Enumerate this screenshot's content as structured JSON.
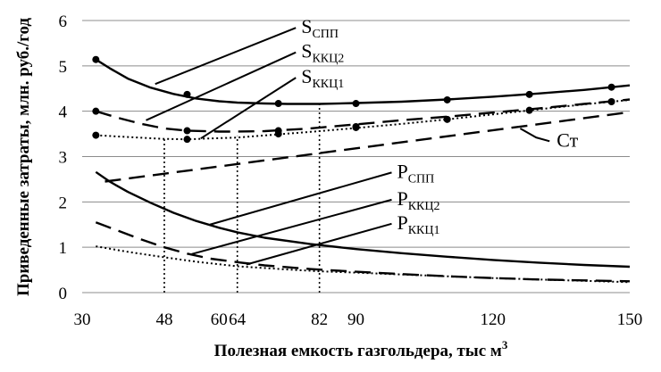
{
  "chart_data": {
    "type": "line",
    "title": "",
    "xlabel_main": "Полезная емкость газгольдера, тыс м",
    "xlabel_sup": "3",
    "ylabel": "Приведенные затраты, млн. руб./год",
    "xlim": [
      30,
      150
    ],
    "ylim": [
      0,
      6
    ],
    "xticks": [
      30,
      48,
      60,
      64,
      82,
      90,
      120,
      150
    ],
    "yticks": [
      0,
      1,
      2,
      3,
      4,
      5,
      6
    ],
    "grid": "horizontal",
    "series": [
      {
        "name": "S_СПП",
        "color": "#000000",
        "dash": "solid",
        "markers": true,
        "points": [
          [
            33,
            5.14
          ],
          [
            36,
            4.95
          ],
          [
            40,
            4.72
          ],
          [
            45,
            4.52
          ],
          [
            50,
            4.38
          ],
          [
            55,
            4.28
          ],
          [
            60,
            4.22
          ],
          [
            64,
            4.19
          ],
          [
            70,
            4.17
          ],
          [
            75,
            4.16
          ],
          [
            82,
            4.16
          ],
          [
            90,
            4.18
          ],
          [
            100,
            4.21
          ],
          [
            110,
            4.26
          ],
          [
            120,
            4.32
          ],
          [
            130,
            4.39
          ],
          [
            140,
            4.47
          ],
          [
            150,
            4.57
          ]
        ],
        "marker_points": [
          [
            33,
            5.14
          ],
          [
            53,
            4.37
          ],
          [
            73,
            4.17
          ],
          [
            90,
            4.17
          ],
          [
            110,
            4.25
          ],
          [
            128,
            4.37
          ],
          [
            146,
            4.53
          ]
        ]
      },
      {
        "name": "S_ККЦ2",
        "color": "#000000",
        "dash": "longdash",
        "markers": true,
        "points": [
          [
            33,
            4.0
          ],
          [
            38,
            3.85
          ],
          [
            43,
            3.72
          ],
          [
            48,
            3.62
          ],
          [
            53,
            3.57
          ],
          [
            60,
            3.55
          ],
          [
            64,
            3.55
          ],
          [
            70,
            3.56
          ],
          [
            80,
            3.62
          ],
          [
            90,
            3.71
          ],
          [
            100,
            3.8
          ],
          [
            110,
            3.88
          ],
          [
            120,
            3.97
          ],
          [
            130,
            4.06
          ],
          [
            140,
            4.16
          ],
          [
            150,
            4.26
          ]
        ],
        "marker_points": [
          [
            33,
            4.0
          ],
          [
            53,
            3.57
          ],
          [
            73,
            3.57
          ],
          [
            90,
            3.66
          ],
          [
            110,
            3.82
          ],
          [
            128,
            4.02
          ],
          [
            146,
            4.21
          ]
        ]
      },
      {
        "name": "S_ККЦ1",
        "color": "#000000",
        "dash": "dotted",
        "markers": true,
        "points": [
          [
            33,
            3.47
          ],
          [
            40,
            3.43
          ],
          [
            48,
            3.39
          ],
          [
            53,
            3.38
          ],
          [
            58,
            3.4
          ],
          [
            64,
            3.42
          ],
          [
            73,
            3.49
          ],
          [
            82,
            3.56
          ],
          [
            90,
            3.63
          ],
          [
            100,
            3.72
          ],
          [
            110,
            3.82
          ],
          [
            120,
            3.93
          ],
          [
            130,
            4.04
          ],
          [
            140,
            4.15
          ],
          [
            150,
            4.25
          ]
        ],
        "marker_points": [
          [
            33,
            3.47
          ],
          [
            53,
            3.38
          ],
          [
            73,
            3.5
          ],
          [
            90,
            3.64
          ]
        ]
      },
      {
        "name": "Ст",
        "color": "#000000",
        "dash": "longdash",
        "markers": false,
        "points": [
          [
            35,
            2.45
          ],
          [
            150,
            3.98
          ]
        ]
      },
      {
        "name": "P_СПП",
        "color": "#000000",
        "dash": "solid",
        "markers": false,
        "points": [
          [
            33,
            2.66
          ],
          [
            36,
            2.45
          ],
          [
            40,
            2.22
          ],
          [
            45,
            1.98
          ],
          [
            50,
            1.76
          ],
          [
            55,
            1.58
          ],
          [
            60,
            1.43
          ],
          [
            64,
            1.33
          ],
          [
            70,
            1.21
          ],
          [
            80,
            1.07
          ],
          [
            90,
            0.96
          ],
          [
            100,
            0.87
          ],
          [
            110,
            0.79
          ],
          [
            120,
            0.72
          ],
          [
            130,
            0.66
          ],
          [
            140,
            0.61
          ],
          [
            150,
            0.57
          ]
        ]
      },
      {
        "name": "P_ККЦ2",
        "color": "#000000",
        "dash": "longdash",
        "markers": false,
        "points": [
          [
            33,
            1.55
          ],
          [
            38,
            1.36
          ],
          [
            43,
            1.17
          ],
          [
            48,
            1.0
          ],
          [
            53,
            0.86
          ],
          [
            58,
            0.75
          ],
          [
            64,
            0.67
          ],
          [
            70,
            0.6
          ],
          [
            80,
            0.52
          ],
          [
            90,
            0.46
          ],
          [
            100,
            0.41
          ],
          [
            110,
            0.36
          ],
          [
            120,
            0.32
          ],
          [
            130,
            0.29
          ],
          [
            140,
            0.27
          ],
          [
            150,
            0.25
          ]
        ]
      },
      {
        "name": "P_ККЦ1",
        "color": "#000000",
        "dash": "dotted",
        "markers": false,
        "points": [
          [
            33,
            1.02
          ],
          [
            40,
            0.9
          ],
          [
            48,
            0.78
          ],
          [
            55,
            0.68
          ],
          [
            64,
            0.58
          ],
          [
            75,
            0.51
          ],
          [
            82,
            0.47
          ],
          [
            90,
            0.44
          ],
          [
            100,
            0.4
          ],
          [
            110,
            0.36
          ],
          [
            120,
            0.32
          ],
          [
            130,
            0.29
          ],
          [
            140,
            0.26
          ],
          [
            150,
            0.23
          ]
        ]
      }
    ],
    "vertical_markers": [
      {
        "x": 48,
        "y": 3.42
      },
      {
        "x": 64,
        "y": 3.45
      },
      {
        "x": 82,
        "y": 4.16
      }
    ],
    "annotations": [
      {
        "id": "S_СПП",
        "main": "S",
        "sub": "СПП",
        "tx": 78,
        "ty": 5.72,
        "ax": 46,
        "ay": 4.6
      },
      {
        "id": "S_ККЦ2",
        "main": "S",
        "sub": "ККЦ2",
        "tx": 78,
        "ty": 5.18,
        "ax": 44,
        "ay": 3.8
      },
      {
        "id": "S_ККЦ1",
        "main": "S",
        "sub": "ККЦ1",
        "tx": 78,
        "ty": 4.62,
        "ax": 56,
        "ay": 3.4
      },
      {
        "id": "Ст",
        "main": "Ст",
        "sub": "",
        "tx": 134,
        "ty": 3.22,
        "ax": 126,
        "ay": 3.62,
        "mx": 129.5,
        "my": 3.42
      },
      {
        "id": "P_СПП",
        "main": "P",
        "sub": "СПП",
        "tx": 99,
        "ty": 2.53,
        "ax": 58,
        "ay": 1.5
      },
      {
        "id": "P_ККЦ2",
        "main": "P",
        "sub": "ККЦ2",
        "tx": 99,
        "ty": 1.93,
        "ax": 54,
        "ay": 0.85
      },
      {
        "id": "P_ККЦ1",
        "main": "P",
        "sub": "ККЦ1",
        "tx": 99,
        "ty": 1.4,
        "ax": 66,
        "ay": 0.62
      }
    ]
  }
}
